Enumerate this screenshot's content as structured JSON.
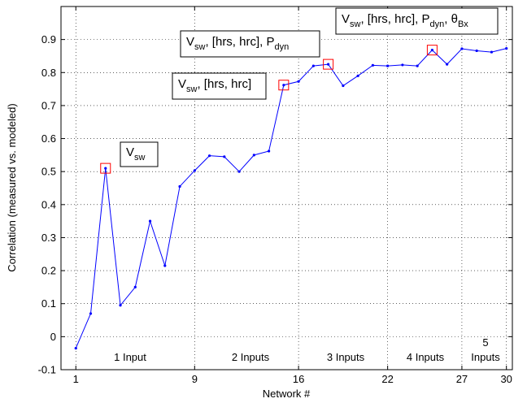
{
  "chart_data": {
    "type": "line",
    "xlabel": "Network #",
    "ylabel": "Correlation (measured vs. modeled)",
    "x": [
      1,
      2,
      3,
      4,
      5,
      6,
      7,
      8,
      9,
      10,
      11,
      12,
      13,
      14,
      15,
      16,
      17,
      18,
      19,
      20,
      21,
      22,
      23,
      24,
      25,
      26,
      27,
      28,
      29,
      30
    ],
    "values": [
      -0.035,
      0.07,
      0.51,
      0.095,
      0.15,
      0.35,
      0.215,
      0.455,
      0.503,
      0.548,
      0.545,
      0.5,
      0.55,
      0.562,
      0.762,
      0.773,
      0.82,
      0.825,
      0.76,
      0.79,
      0.822,
      0.82,
      0.823,
      0.82,
      0.868,
      0.825,
      0.872,
      0.866,
      0.862,
      0.873
    ],
    "color": "#0000ff",
    "highlights": [
      3,
      15,
      18,
      25
    ],
    "highlight_color": "#ff0000",
    "annotations": [
      [
        "V",
        {
          "sub": "sw"
        }
      ],
      [
        "V",
        {
          "sub": "sw"
        },
        ", [hrs, hrc]"
      ],
      [
        "V",
        {
          "sub": "sw"
        },
        ", [hrs, hrc], P",
        {
          "sub": "dyn"
        }
      ],
      [
        "V",
        {
          "sub": "sw"
        },
        ", [hrs, hrc], P",
        {
          "sub": "dyn"
        },
        ", θ",
        {
          "sub": "Bx"
        }
      ]
    ],
    "section_labels": [
      [
        "1 Input"
      ],
      [
        "2 Inputs"
      ],
      [
        "3 Inputs"
      ],
      [
        "4 Inputs"
      ],
      [
        "5",
        "Inputs"
      ]
    ],
    "xlim": [
      0,
      30.4
    ],
    "ylim": [
      -0.1,
      1.0
    ],
    "xticks": [
      1,
      9,
      16,
      22,
      27,
      30
    ],
    "yticks": [
      -0.1,
      0,
      0.1,
      0.2,
      0.3,
      0.4,
      0.5,
      0.6,
      0.7,
      0.8,
      0.9
    ],
    "grid": true
  }
}
